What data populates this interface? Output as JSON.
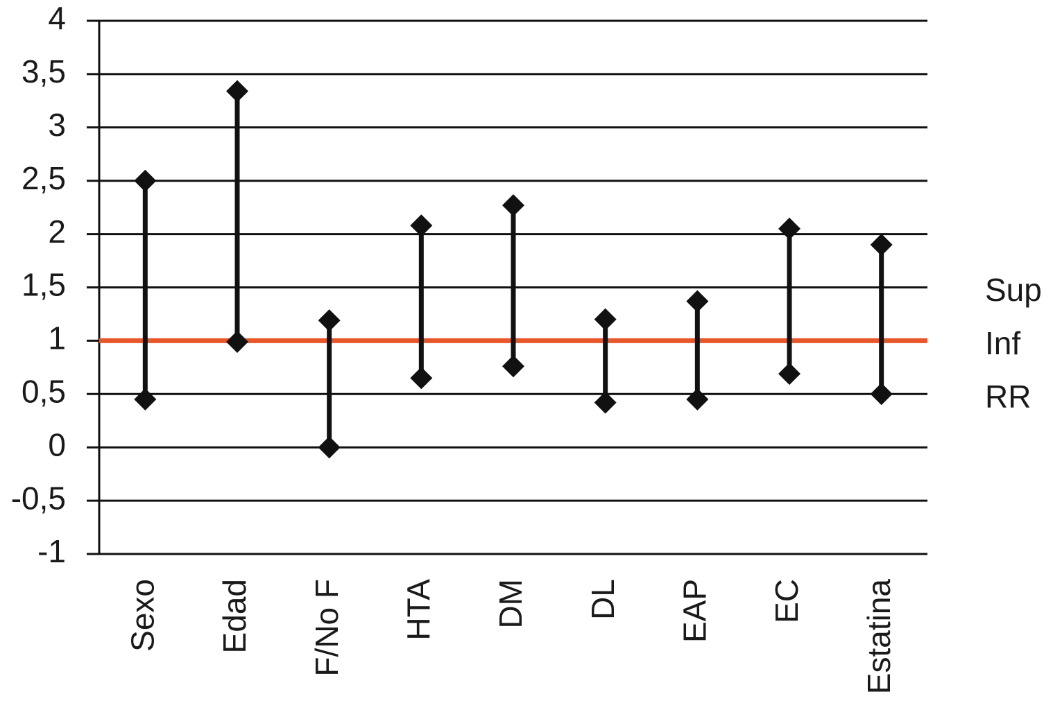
{
  "chart_data": {
    "type": "hilo",
    "categories": [
      "Sexo",
      "Edad",
      "F/No F",
      "HTA",
      "DM",
      "DL",
      "EAP",
      "EC",
      "Estatina"
    ],
    "series": [
      {
        "name": "Sup",
        "color": "#111111",
        "values": [
          2.5,
          3.34,
          1.19,
          2.08,
          2.27,
          1.2,
          1.37,
          2.05,
          1.9
        ]
      },
      {
        "name": "Inf",
        "color": "#111111",
        "values": [
          0.45,
          0.99,
          0,
          0.65,
          0.76,
          0.42,
          0.45,
          0.69,
          0.5
        ]
      },
      {
        "name": "RR",
        "color": "#e8572a",
        "values": [
          1,
          1,
          1,
          1,
          1,
          1,
          1,
          1,
          1
        ]
      }
    ],
    "ylim": [
      -1,
      4
    ],
    "yticks": [
      -1,
      {
        "value": -0.5,
        "label": "-0,5"
      },
      0,
      {
        "value": 0.5,
        "label": "0,5"
      },
      1,
      {
        "value": 1.5,
        "label": "1,5"
      },
      2,
      {
        "value": 2.5,
        "label": "2,5"
      },
      3,
      {
        "value": 3.5,
        "label": "3,5"
      },
      4
    ],
    "grid": true,
    "legend": "right"
  }
}
